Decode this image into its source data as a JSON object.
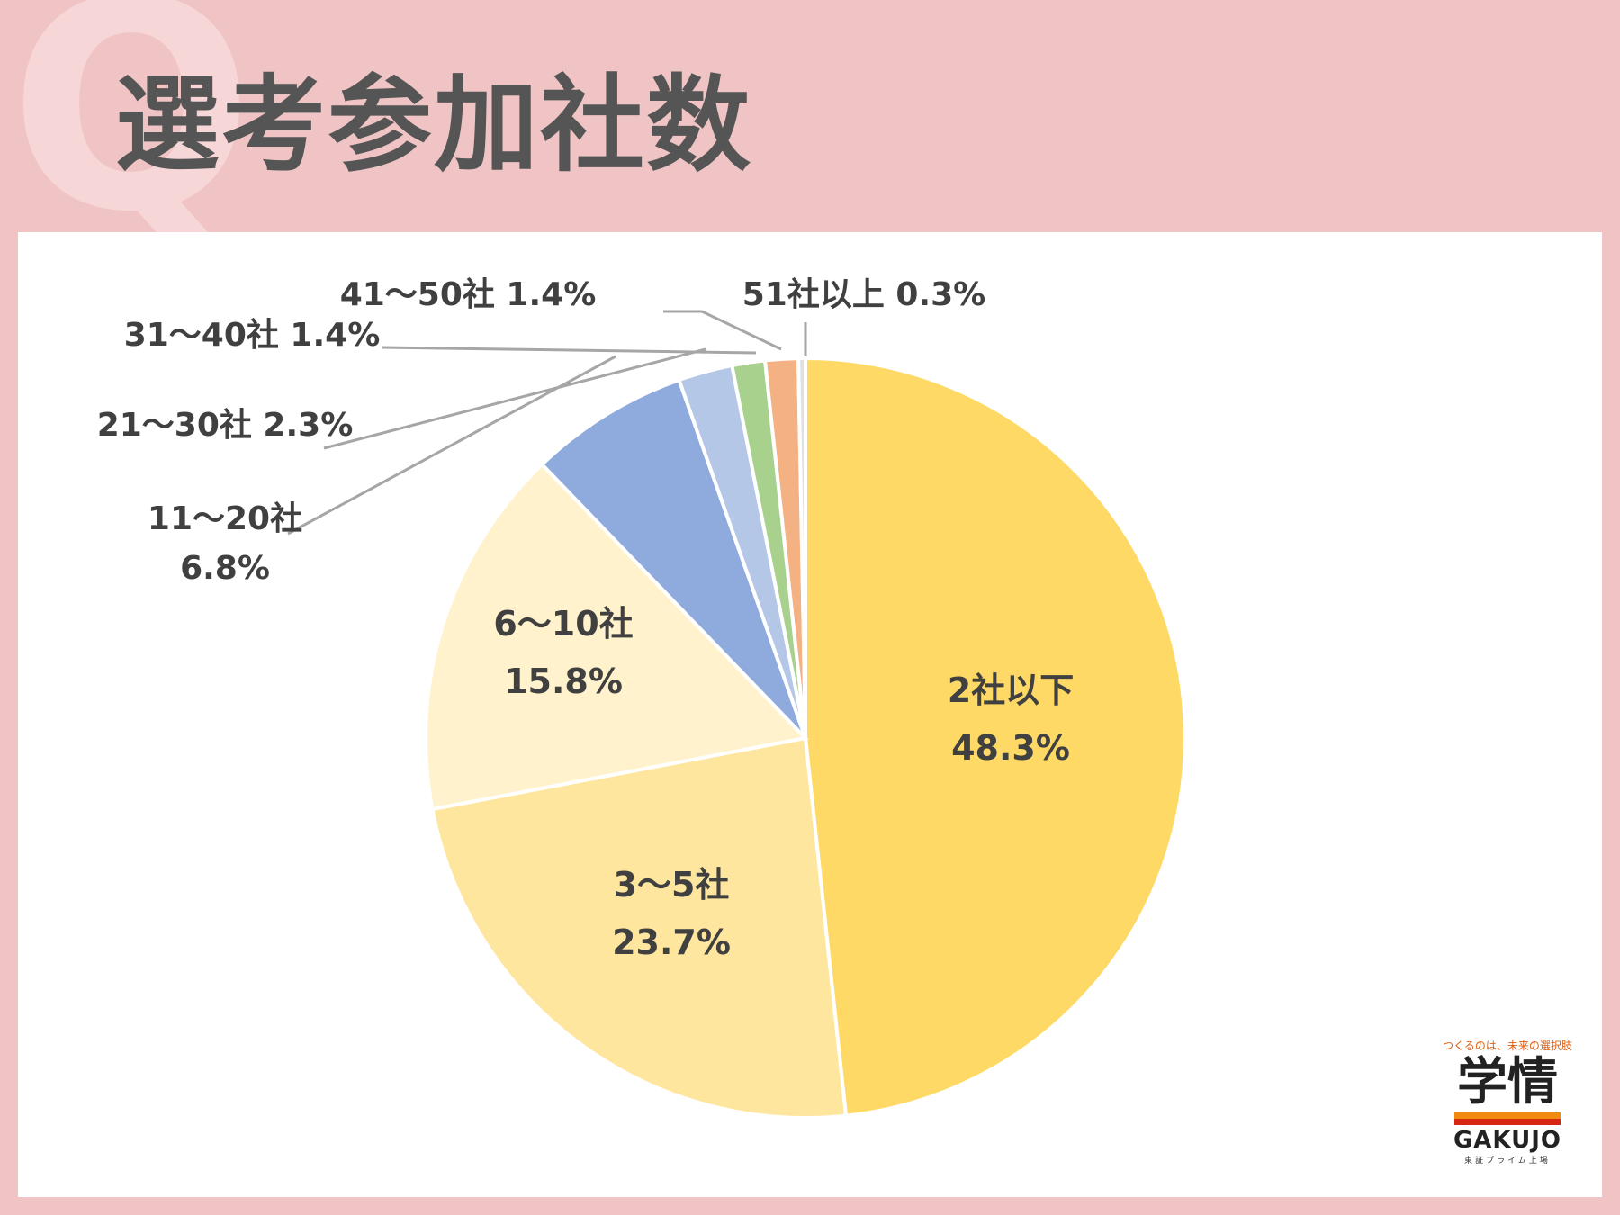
{
  "header": {
    "title": "選考参加社数",
    "watermark": "Q"
  },
  "chart_data": {
    "type": "pie",
    "start": "12 o'clock",
    "direction": "clockwise",
    "slices": [
      {
        "label": "2社以下",
        "value": 48.3,
        "value_label": "48.3%",
        "color": "#fed966"
      },
      {
        "label": "3～5社",
        "value": 23.7,
        "value_label": "23.7%",
        "color": "#ffe69f"
      },
      {
        "label": "6～10社",
        "value": 15.8,
        "value_label": "15.8%",
        "color": "#fff2cc"
      },
      {
        "label": "11～20社",
        "value": 6.8,
        "value_label": "6.8%",
        "color": "#8fabdd"
      },
      {
        "label": "21～30社",
        "value": 2.3,
        "value_label": "2.3%",
        "color": "#b4c7e7"
      },
      {
        "label": "31～40社",
        "value": 1.4,
        "value_label": "1.4%",
        "color": "#a9d18e"
      },
      {
        "label": "41～50社",
        "value": 1.4,
        "value_label": "1.4%",
        "color": "#f4b183"
      },
      {
        "label": "51社以上",
        "value": 0.3,
        "value_label": "0.3%",
        "color": "#e0e0e0"
      }
    ]
  },
  "logo": {
    "tagline": "つくるのは、未来の選択肢",
    "mark": "学情",
    "word": "GAKUJO",
    "sub": "東証プライム上場"
  }
}
